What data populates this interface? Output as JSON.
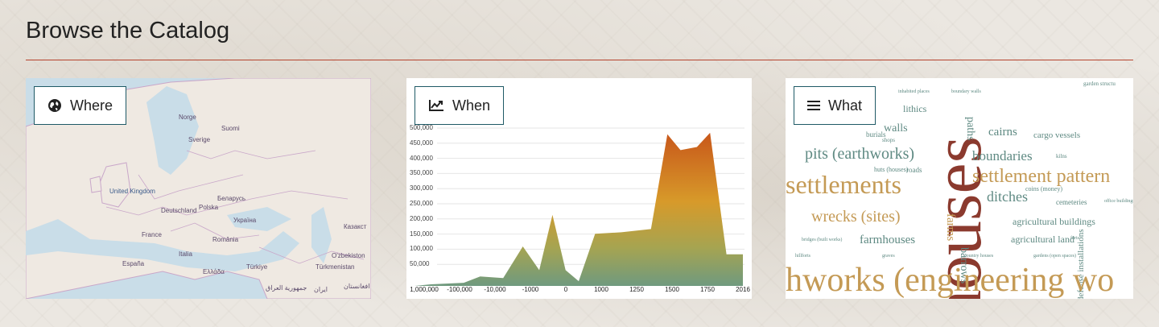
{
  "page": {
    "title": "Browse the Catalog"
  },
  "buttons": {
    "where": {
      "label": "Where",
      "icon": "globe-icon"
    },
    "when": {
      "label": "When",
      "icon": "line-chart-icon"
    },
    "what": {
      "label": "What",
      "icon": "bars-icon"
    }
  },
  "colors": {
    "accent_rule": "#b5432d",
    "button_border": "#1f5a66",
    "word_dark": "#8b3a2e",
    "word_gold": "#c49a55",
    "word_teal": "#5f8a83"
  },
  "map": {
    "labels": [
      "Norge",
      "Suomi",
      "Sverige",
      "United Kingdom",
      "Беларусь",
      "Deutschland",
      "Polska",
      "Україна",
      "France",
      "România",
      "Казакст",
      "España",
      "Italia",
      "Türkiye",
      "Türkmenistan",
      "O'zbekiston",
      "Ελλάδα",
      "ایران",
      "جمهورية العراق",
      "افغانستان"
    ]
  },
  "chart_data": {
    "type": "area",
    "x": [
      "1,000,000",
      "-100,000",
      "-10,000",
      "-1000",
      "0",
      "1000",
      "1250",
      "1500",
      "1750",
      "2016"
    ],
    "y_ticks": [
      "500,000",
      "450,000",
      "400,000",
      "350,000",
      "300,000",
      "250,000",
      "200,000",
      "150,000",
      "100,000",
      "50,000"
    ],
    "values": [
      0,
      5000,
      35000,
      120000,
      225000,
      165000,
      170000,
      480000,
      440000,
      100000
    ],
    "ylim": [
      0,
      500000
    ]
  },
  "wordcloud": {
    "words": [
      {
        "t": "houses",
        "c": "dark"
      },
      {
        "t": "settlements",
        "c": "gold"
      },
      {
        "t": "settlement pattern",
        "c": "gold"
      },
      {
        "t": "pits (earthworks)",
        "c": "teal"
      },
      {
        "t": "wrecks (sites)",
        "c": "gold"
      },
      {
        "t": "farmhouses",
        "c": "teal"
      },
      {
        "t": "ditches",
        "c": "teal"
      },
      {
        "t": "boundaries",
        "c": "teal"
      },
      {
        "t": "cairns",
        "c": "teal"
      },
      {
        "t": "cargo vessels",
        "c": "teal"
      },
      {
        "t": "agricultural buildings",
        "c": "teal"
      },
      {
        "t": "agricultural land",
        "c": "teal"
      },
      {
        "t": "walls",
        "c": "teal"
      },
      {
        "t": "lithics",
        "c": "teal"
      },
      {
        "t": "farms",
        "c": "gold"
      },
      {
        "t": "barrows",
        "c": "teal"
      },
      {
        "t": "defense installations",
        "c": "teal"
      },
      {
        "t": "hworks (engineering wo",
        "c": "gold"
      },
      {
        "t": "coins (money)",
        "c": "teal"
      },
      {
        "t": "cemeteries",
        "c": "teal"
      },
      {
        "t": "huts (houses)",
        "c": "teal"
      },
      {
        "t": "roads",
        "c": "teal"
      },
      {
        "t": "burials",
        "c": "teal"
      },
      {
        "t": "paths",
        "c": "teal"
      },
      {
        "t": "kilns",
        "c": "teal"
      },
      {
        "t": "bridges (built works)",
        "c": "teal"
      },
      {
        "t": "hillforts",
        "c": "teal"
      },
      {
        "t": "graves",
        "c": "teal"
      },
      {
        "t": "country houses",
        "c": "teal"
      },
      {
        "t": "gardens (open spaces)",
        "c": "teal"
      },
      {
        "t": "inhabited places",
        "c": "teal"
      },
      {
        "t": "boundary walls",
        "c": "teal"
      },
      {
        "t": "garden structu",
        "c": "teal"
      },
      {
        "t": "office buildings",
        "c": "teal"
      },
      {
        "t": "forts",
        "c": "teal"
      },
      {
        "t": "shops",
        "c": "teal"
      }
    ]
  }
}
